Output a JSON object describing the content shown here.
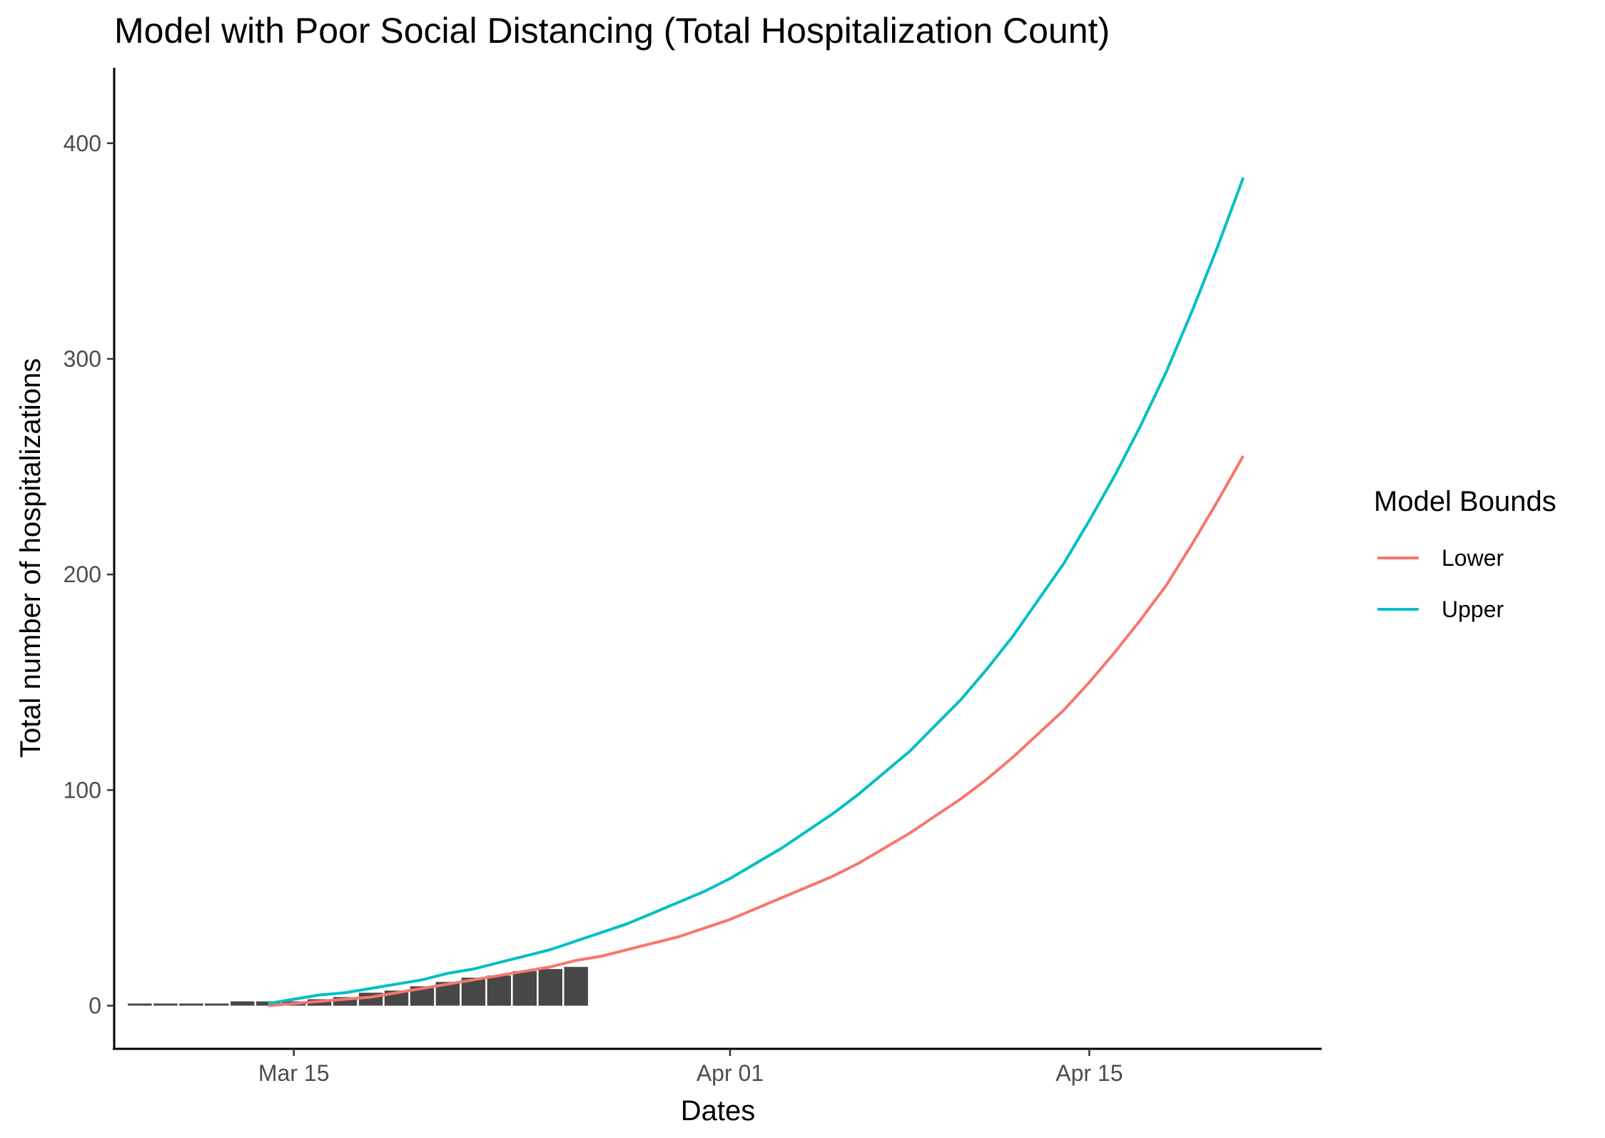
{
  "chart_data": {
    "type": "line",
    "title": "Model with Poor Social Distancing (Total Hospitalization Count)",
    "xlabel": "Dates",
    "ylabel": "Total number of hospitalizations",
    "x_ticks": [
      {
        "date": "2020-03-15",
        "label": "Mar 15"
      },
      {
        "date": "2020-04-01",
        "label": "Apr 01"
      },
      {
        "date": "2020-04-15",
        "label": "Apr 15"
      }
    ],
    "y_ticks": [
      0,
      100,
      200,
      300,
      400
    ],
    "xlim": [
      "2020-03-08",
      "2020-04-24"
    ],
    "ylim": [
      -20,
      435
    ],
    "grid": false,
    "legend": {
      "title": "Model Bounds",
      "position": "right"
    },
    "bars": {
      "color": "#474747",
      "x": [
        "2020-03-09",
        "2020-03-10",
        "2020-03-11",
        "2020-03-12",
        "2020-03-13",
        "2020-03-14",
        "2020-03-15",
        "2020-03-16",
        "2020-03-17",
        "2020-03-18",
        "2020-03-19",
        "2020-03-20",
        "2020-03-21",
        "2020-03-22",
        "2020-03-23",
        "2020-03-24",
        "2020-03-25",
        "2020-03-26"
      ],
      "values": [
        1,
        1,
        1,
        1,
        2,
        2,
        2,
        3,
        4,
        6,
        7,
        9,
        11,
        13,
        14,
        16,
        17,
        18
      ]
    },
    "series": [
      {
        "name": "Lower",
        "color": "#F8766D",
        "x": [
          "2020-03-14",
          "2020-03-15",
          "2020-03-16",
          "2020-03-17",
          "2020-03-18",
          "2020-03-19",
          "2020-03-20",
          "2020-03-21",
          "2020-03-22",
          "2020-03-23",
          "2020-03-24",
          "2020-03-25",
          "2020-03-26",
          "2020-03-27",
          "2020-03-28",
          "2020-03-29",
          "2020-03-30",
          "2020-03-31",
          "2020-04-01",
          "2020-04-02",
          "2020-04-03",
          "2020-04-04",
          "2020-04-05",
          "2020-04-06",
          "2020-04-07",
          "2020-04-08",
          "2020-04-09",
          "2020-04-10",
          "2020-04-11",
          "2020-04-12",
          "2020-04-13",
          "2020-04-14",
          "2020-04-15",
          "2020-04-16",
          "2020-04-17",
          "2020-04-18",
          "2020-04-19",
          "2020-04-20",
          "2020-04-21"
        ],
        "values": [
          0,
          1,
          2,
          3,
          4,
          6,
          8,
          10,
          12,
          14,
          16,
          18,
          21,
          23,
          26,
          29,
          32,
          36,
          40,
          45,
          50,
          55,
          60,
          66,
          73,
          80,
          88,
          96,
          105,
          115,
          126,
          137,
          150,
          164,
          179,
          195,
          214,
          234,
          255
        ]
      },
      {
        "name": "Upper",
        "color": "#00BFC4",
        "x": [
          "2020-03-14",
          "2020-03-15",
          "2020-03-16",
          "2020-03-17",
          "2020-03-18",
          "2020-03-19",
          "2020-03-20",
          "2020-03-21",
          "2020-03-22",
          "2020-03-23",
          "2020-03-24",
          "2020-03-25",
          "2020-03-26",
          "2020-03-27",
          "2020-03-28",
          "2020-03-29",
          "2020-03-30",
          "2020-03-31",
          "2020-04-01",
          "2020-04-02",
          "2020-04-03",
          "2020-04-04",
          "2020-04-05",
          "2020-04-06",
          "2020-04-07",
          "2020-04-08",
          "2020-04-09",
          "2020-04-10",
          "2020-04-11",
          "2020-04-12",
          "2020-04-13",
          "2020-04-14",
          "2020-04-15",
          "2020-04-16",
          "2020-04-17",
          "2020-04-18",
          "2020-04-19",
          "2020-04-20",
          "2020-04-21"
        ],
        "values": [
          1,
          3,
          5,
          6,
          8,
          10,
          12,
          15,
          17,
          20,
          23,
          26,
          30,
          34,
          38,
          43,
          48,
          53,
          59,
          66,
          73,
          81,
          89,
          98,
          108,
          118,
          130,
          142,
          156,
          171,
          188,
          205,
          225,
          246,
          269,
          294,
          322,
          352,
          384
        ]
      }
    ]
  }
}
